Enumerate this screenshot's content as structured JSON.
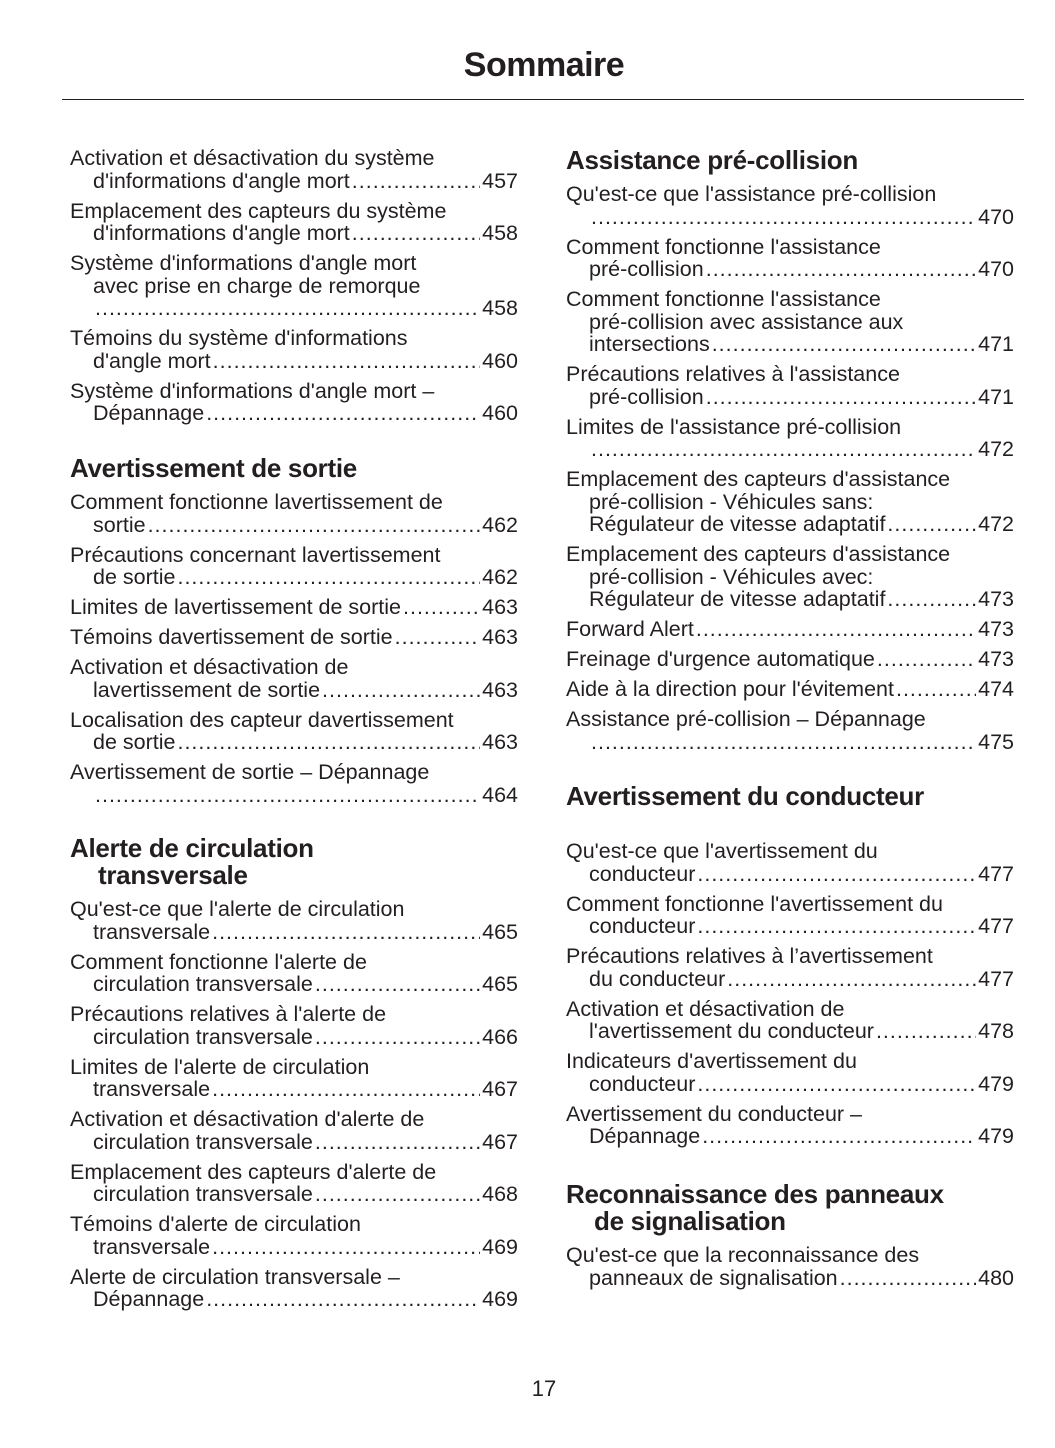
{
  "title": "Sommaire",
  "page_number": "17",
  "left": [
    {
      "heading": null,
      "entries": [
        {
          "lines": [
            "Activation et désactivation du système",
            "d'informations d'angle mort"
          ],
          "page": "457"
        },
        {
          "lines": [
            "Emplacement des capteurs du système",
            "d'informations d'angle mort"
          ],
          "page": "458"
        },
        {
          "lines": [
            "Système d'informations d'angle mort",
            "avec prise en charge de remorque",
            ""
          ],
          "page": "458"
        },
        {
          "lines": [
            "Témoins du système d'informations",
            "d'angle mort"
          ],
          "page": "460"
        },
        {
          "lines": [
            "Système d'informations d'angle mort –",
            "Dépannage"
          ],
          "page": "460"
        }
      ]
    },
    {
      "heading": [
        "Avertissement de sortie"
      ],
      "entries": [
        {
          "lines": [
            "Comment fonctionne lavertissement de",
            "sortie"
          ],
          "page": "462"
        },
        {
          "lines": [
            "Précautions concernant lavertissement",
            "de sortie"
          ],
          "page": "462"
        },
        {
          "lines": [
            "Limites de lavertissement de sortie"
          ],
          "page": "463"
        },
        {
          "lines": [
            "Témoins davertissement de sortie"
          ],
          "page": "463"
        },
        {
          "lines": [
            "Activation et désactivation de",
            "lavertissement de sortie"
          ],
          "page": "463"
        },
        {
          "lines": [
            "Localisation des capteur davertissement",
            "de sortie"
          ],
          "page": "463"
        },
        {
          "lines": [
            "Avertissement de sortie – Dépannage",
            ""
          ],
          "page": "464"
        }
      ]
    },
    {
      "heading": [
        "Alerte de circulation",
        "transversale"
      ],
      "entries": [
        {
          "lines": [
            "Qu'est-ce que l'alerte de circulation",
            "transversale"
          ],
          "page": "465"
        },
        {
          "lines": [
            "Comment fonctionne l'alerte de",
            "circulation transversale"
          ],
          "page": "465"
        },
        {
          "lines": [
            "Précautions relatives à l'alerte de",
            "circulation transversale"
          ],
          "page": "466"
        },
        {
          "lines": [
            "Limites de l'alerte de circulation",
            "transversale"
          ],
          "page": "467"
        },
        {
          "lines": [
            "Activation et désactivation d'alerte de",
            "circulation transversale"
          ],
          "page": "467"
        },
        {
          "lines": [
            "Emplacement des capteurs d'alerte de",
            "circulation transversale"
          ],
          "page": "468"
        },
        {
          "lines": [
            "Témoins d'alerte de circulation",
            "transversale"
          ],
          "page": "469"
        },
        {
          "lines": [
            "Alerte de circulation transversale –",
            "Dépannage"
          ],
          "page": "469"
        }
      ]
    }
  ],
  "right": [
    {
      "heading": [
        "Assistance pré-collision"
      ],
      "entries": [
        {
          "lines": [
            "Qu'est-ce que l'assistance pré-collision",
            ""
          ],
          "page": "470"
        },
        {
          "lines": [
            "Comment fonctionne l'assistance",
            "pré-collision"
          ],
          "page": "470"
        },
        {
          "lines": [
            "Comment fonctionne l'assistance",
            "pré-collision avec assistance aux",
            "intersections"
          ],
          "page": "471"
        },
        {
          "lines": [
            "Précautions relatives à l'assistance",
            "pré-collision"
          ],
          "page": "471"
        },
        {
          "lines": [
            "Limites de l'assistance pré-collision",
            ""
          ],
          "page": "472"
        },
        {
          "lines": [
            "Emplacement des capteurs d'assistance",
            "pré-collision - Véhicules sans:",
            "Régulateur de vitesse adaptatif"
          ],
          "page": "472"
        },
        {
          "lines": [
            "Emplacement des capteurs d'assistance",
            "pré-collision - Véhicules avec:",
            "Régulateur de vitesse adaptatif"
          ],
          "page": "473"
        },
        {
          "lines": [
            "Forward Alert"
          ],
          "page": "473"
        },
        {
          "lines": [
            "Freinage d'urgence automatique"
          ],
          "page": "473"
        },
        {
          "lines": [
            "Aide à la direction pour l'évitement"
          ],
          "page": "474"
        },
        {
          "lines": [
            "Assistance pré-collision – Dépannage",
            ""
          ],
          "page": "475"
        }
      ]
    },
    {
      "heading": [
        "Avertissement du conducteur"
      ],
      "entries": [
        {
          "lines": [
            "Qu'est-ce que l'avertissement du",
            "conducteur"
          ],
          "page": "477"
        },
        {
          "lines": [
            "Comment fonctionne l'avertissement du",
            "conducteur"
          ],
          "page": "477"
        },
        {
          "lines": [
            "Précautions relatives à l’avertissement",
            "du conducteur"
          ],
          "page": "477"
        },
        {
          "lines": [
            "Activation et désactivation de",
            "l'avertissement du conducteur"
          ],
          "page": "478"
        },
        {
          "lines": [
            "Indicateurs d'avertissement du",
            "conducteur"
          ],
          "page": "479"
        },
        {
          "lines": [
            "Avertissement du conducteur –",
            "Dépannage"
          ],
          "page": "479"
        }
      ]
    },
    {
      "heading": [
        "Reconnaissance des panneaux",
        "de signalisation"
      ],
      "entries": [
        {
          "lines": [
            "Qu'est-ce que la reconnaissance des",
            "panneaux de signalisation"
          ],
          "page": "480"
        }
      ]
    }
  ]
}
